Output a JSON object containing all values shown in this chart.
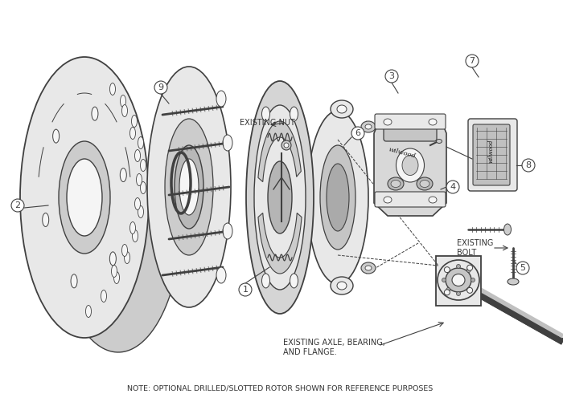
{
  "background_color": "#ffffff",
  "line_color": "#404040",
  "fill_light": "#e8e8e8",
  "fill_medium": "#cccccc",
  "fill_dark": "#aaaaaa",
  "fill_white": "#f5f5f5",
  "note_text": "NOTE: OPTIONAL DRILLED/SLOTTED ROTOR SHOWN FOR REFERENCE PURPOSES",
  "existing_axle_label": "EXISTING AXLE, BEARING,\nAND FLANGE.",
  "existing_bolt_label": "EXISTING\nBOLT",
  "existing_nut_label": "EXISTING NUT",
  "label_fontsize": 7.0,
  "note_fontsize": 6.8,
  "part_num_fontsize": 8.0
}
